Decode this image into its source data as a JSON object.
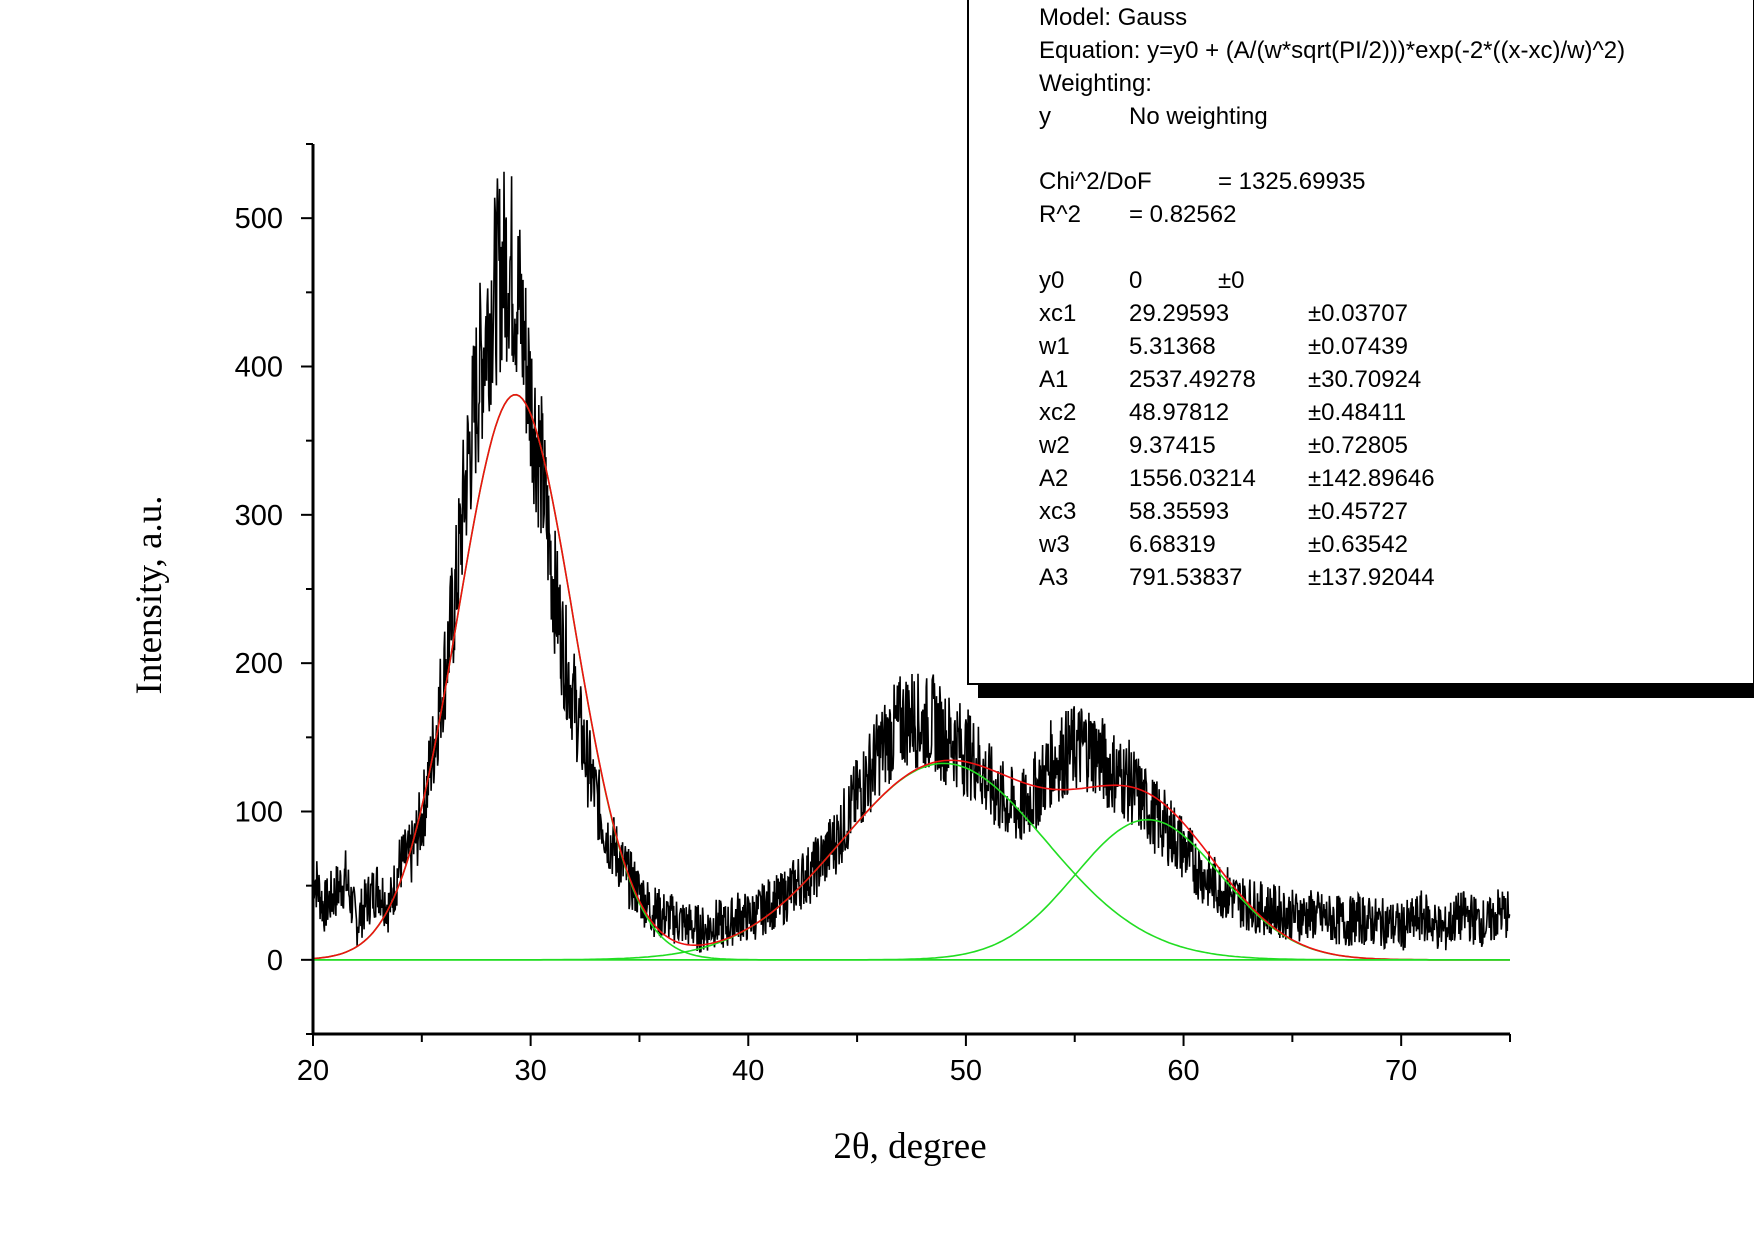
{
  "chart_data": {
    "type": "line",
    "xlabel": "2θ, degree",
    "ylabel": "Intensity, a.u.",
    "xlim": [
      20,
      75
    ],
    "ylim": [
      -50,
      550
    ],
    "x_ticks": [
      20,
      30,
      40,
      50,
      60,
      70
    ],
    "y_ticks": [
      0,
      100,
      200,
      300,
      400,
      500
    ],
    "grid": false,
    "colors": {
      "data": "#000000",
      "components": "#22dd22",
      "fit": "#ee1111"
    },
    "fit_model": {
      "y0": 0,
      "peaks": [
        {
          "xc": 29.29593,
          "w": 5.31368,
          "A": 2537.49278
        },
        {
          "xc": 48.97812,
          "w": 9.37415,
          "A": 1556.03214
        },
        {
          "xc": 58.35593,
          "w": 6.68319,
          "A": 791.53837
        }
      ]
    },
    "series": [
      {
        "style": "data",
        "x": [
          20.0,
          20.5,
          21.0,
          21.5,
          22.0,
          22.5,
          23.0,
          23.5,
          24.0,
          24.5,
          25.0,
          25.5,
          26.0,
          26.5,
          27.0,
          27.5,
          28.0,
          28.5,
          29.0,
          29.5,
          30.0,
          30.5,
          31.0,
          31.5,
          32.0,
          32.5,
          33.0,
          33.5,
          34.0,
          34.5,
          35.0,
          35.5,
          36.0,
          36.5,
          37.0,
          37.5,
          38.0,
          38.5,
          39.0,
          39.5,
          40.0,
          40.5,
          41.0,
          41.5,
          42.0,
          42.5,
          43.0,
          43.5,
          44.0,
          44.5,
          45.0,
          45.5,
          46.0,
          46.5,
          47.0,
          47.5,
          48.0,
          48.5,
          49.0,
          49.5,
          50.0,
          50.5,
          51.0,
          51.5,
          52.0,
          52.5,
          53.0,
          53.5,
          54.0,
          54.5,
          55.0,
          55.5,
          56.0,
          56.5,
          57.0,
          57.5,
          58.0,
          58.5,
          59.0,
          59.5,
          60.0,
          60.5,
          61.0,
          61.5,
          62.0,
          62.5,
          63.0,
          63.5,
          64.0,
          64.5,
          65.0,
          65.5,
          66.0,
          66.5,
          67.0,
          67.5,
          68.0,
          68.5,
          69.0,
          69.5,
          70.0,
          70.5,
          71.0,
          71.5,
          72.0,
          72.5,
          73.0,
          73.5,
          74.0,
          74.5,
          75.0
        ],
        "y": [
          60,
          35,
          45,
          55,
          25,
          40,
          50,
          35,
          65,
          70,
          95,
          140,
          190,
          240,
          320,
          380,
          430,
          460,
          475,
          440,
          380,
          330,
          260,
          210,
          175,
          140,
          110,
          85,
          70,
          55,
          45,
          35,
          30,
          28,
          25,
          22,
          20,
          25,
          22,
          30,
          28,
          32,
          38,
          40,
          48,
          55,
          60,
          70,
          80,
          95,
          110,
          125,
          140,
          150,
          160,
          165,
          158,
          160,
          150,
          148,
          140,
          135,
          120,
          110,
          105,
          100,
          110,
          120,
          135,
          138,
          142,
          145,
          140,
          130,
          125,
          120,
          110,
          100,
          92,
          85,
          75,
          65,
          55,
          50,
          45,
          40,
          38,
          35,
          34,
          32,
          30,
          30,
          30,
          28,
          27,
          25,
          28,
          26,
          25,
          24,
          22,
          25,
          30,
          24,
          20,
          28,
          30,
          26,
          24,
          32,
          30
        ]
      },
      {
        "style": "component",
        "name": ""
      },
      {
        "style": "component",
        "name": ""
      },
      {
        "style": "component",
        "name": ""
      },
      {
        "style": "fit",
        "name": ""
      }
    ]
  },
  "results_box": {
    "model_line": "Model: Gauss",
    "equation_line": "Equation: y=y0 + (A/(w*sqrt(PI/2)))*exp(-2*((x-xc)/w)^2)",
    "weighting_line": "Weighting:",
    "weighting_var": "y",
    "weighting_value": "No weighting",
    "chi_label": "Chi^2/DoF",
    "chi_value": "= 1325.69935",
    "r2_label": "R^2",
    "r2_value": "=  0.82562",
    "params": [
      {
        "name": "y0",
        "value": "0",
        "error": "±0"
      },
      {
        "name": "xc1",
        "value": "29.29593",
        "error": "±0.03707"
      },
      {
        "name": "w1",
        "value": "5.31368",
        "error": "±0.07439"
      },
      {
        "name": "A1",
        "value": "2537.49278",
        "error": "±30.70924"
      },
      {
        "name": "xc2",
        "value": "48.97812",
        "error": "±0.48411"
      },
      {
        "name": "w2",
        "value": "9.37415",
        "error": "±0.72805"
      },
      {
        "name": "A2",
        "value": "1556.03214",
        "error": "±142.89646"
      },
      {
        "name": "xc3",
        "value": "58.35593",
        "error": "±0.45727"
      },
      {
        "name": "w3",
        "value": "6.68319",
        "error": "±0.63542"
      },
      {
        "name": "A3",
        "value": "791.53837",
        "error": "±137.92044"
      }
    ]
  }
}
